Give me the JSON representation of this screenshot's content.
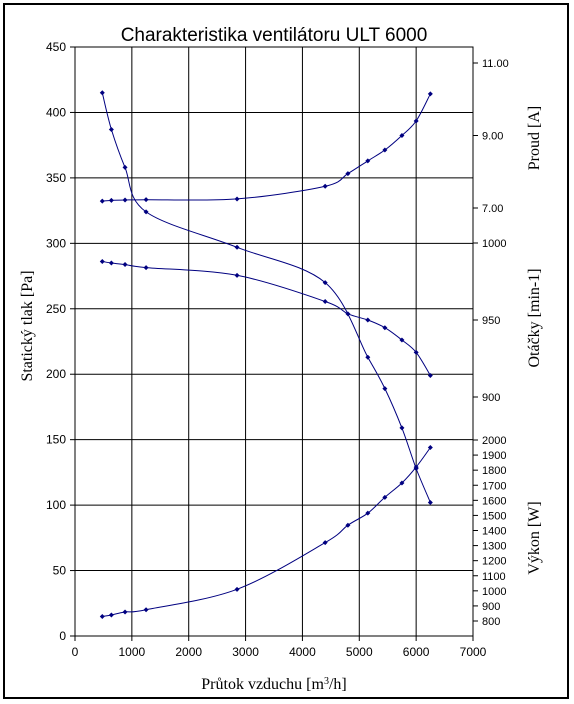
{
  "chart_data": {
    "type": "line",
    "title": "Charakteristika ventilátoru ULT 6000",
    "xlabel_main": "Průtok vzduchu [m",
    "xlabel_sup": "3",
    "xlabel_tail": "/h]",
    "ylabel": "Statický tlak [Pa]",
    "xlim": [
      0,
      7000
    ],
    "ylim": [
      0,
      450
    ],
    "x_ticks": [
      0,
      1000,
      2000,
      3000,
      4000,
      5000,
      6000,
      7000
    ],
    "y_ticks": [
      0,
      50,
      100,
      150,
      200,
      250,
      300,
      350,
      400,
      450
    ],
    "grid": true,
    "right_axes": [
      {
        "label": "Proud [A]",
        "ticks": [
          "11.00",
          "9.00",
          "7.00"
        ],
        "tick_values": [
          11,
          9,
          7
        ],
        "range": [
          6,
          11.4
        ]
      },
      {
        "label": "Otáčky [min-1]",
        "ticks": [
          "1000",
          "950",
          "900"
        ],
        "tick_values": [
          1000,
          950,
          900
        ],
        "range": [
          870,
          1000
        ]
      },
      {
        "label": "Výkon [W]",
        "ticks": [
          "2000",
          "1900",
          "1800",
          "1700",
          "1600",
          "1500",
          "1400",
          "1300",
          "1200",
          "1100",
          "1000",
          "900",
          "800"
        ],
        "tick_values": [
          2000,
          1900,
          1800,
          1700,
          1600,
          1500,
          1400,
          1300,
          1200,
          1100,
          1000,
          900,
          800
        ],
        "range": [
          700,
          2000
        ]
      }
    ],
    "series": [
      {
        "id": "static_pressure",
        "axis": "Pa",
        "x": [
          480,
          640,
          880,
          1250,
          2850,
          4400,
          5150,
          5450,
          5750,
          6000,
          6250
        ],
        "y": [
          415,
          387,
          358,
          324,
          297,
          270,
          213,
          189,
          159,
          128,
          102
        ]
      },
      {
        "id": "current",
        "axis": "Proud [A]",
        "x": [
          480,
          640,
          880,
          1250,
          2850,
          4400,
          4800,
          5150,
          5450,
          5750,
          6000,
          6250
        ],
        "y": [
          7.19,
          7.21,
          7.22,
          7.23,
          7.25,
          7.6,
          7.95,
          8.3,
          8.6,
          9.0,
          9.4,
          10.15
        ]
      },
      {
        "id": "speed",
        "axis": "Otáčky [min-1]",
        "x": [
          480,
          640,
          880,
          1250,
          2850,
          4400,
          4800,
          5150,
          5450,
          5750,
          6000,
          6250
        ],
        "y": [
          988,
          987,
          986,
          984,
          979,
          962,
          954,
          950,
          945,
          937,
          929,
          914
        ]
      },
      {
        "id": "power",
        "axis": "Výkon [W]",
        "x": [
          480,
          640,
          880,
          1250,
          2850,
          4400,
          4800,
          5150,
          5450,
          5750,
          6000,
          6250
        ],
        "y": [
          830,
          840,
          860,
          875,
          1010,
          1320,
          1435,
          1515,
          1620,
          1715,
          1820,
          1950
        ]
      }
    ],
    "colors": {
      "series": "#000080",
      "grid": "#000000",
      "text": "#000000"
    }
  }
}
